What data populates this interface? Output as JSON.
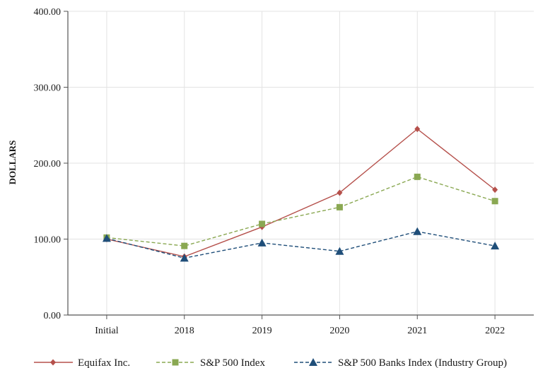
{
  "chart_data": {
    "type": "line",
    "title": "",
    "xlabel": "",
    "ylabel": "DOLLARS",
    "categories": [
      "Initial",
      "2018",
      "2019",
      "2020",
      "2021",
      "2022"
    ],
    "ylim": [
      0,
      400
    ],
    "yticks": [
      "0.00",
      "100.00",
      "200.00",
      "300.00",
      "400.00"
    ],
    "grid": true,
    "legend_position": "bottom",
    "series": [
      {
        "name": "Equifax Inc.",
        "values": [
          100,
          77,
          116,
          161,
          245,
          165
        ],
        "color": "#b5504b",
        "marker": "diamond",
        "dash": "solid"
      },
      {
        "name": "S&P 500 Index",
        "values": [
          102,
          91,
          120,
          142,
          182,
          150
        ],
        "color": "#8aa852",
        "marker": "square",
        "dash": "dashed"
      },
      {
        "name": "S&P 500 Banks Index (Industry Group)",
        "values": [
          101,
          75,
          95,
          84,
          110,
          91
        ],
        "color": "#1f4e79",
        "marker": "triangle",
        "dash": "dashed"
      }
    ]
  }
}
